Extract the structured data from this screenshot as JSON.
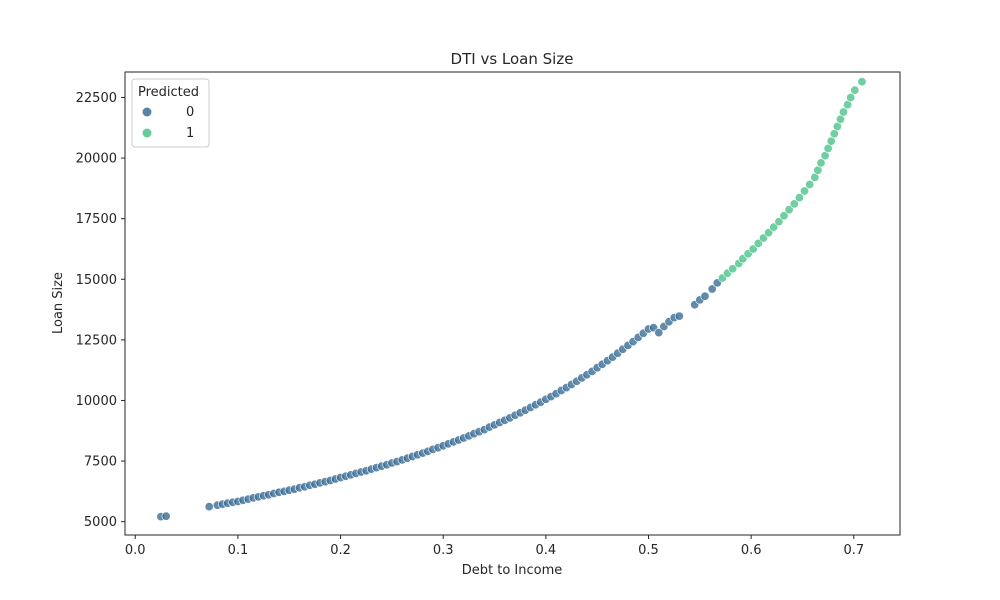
{
  "chart_data": {
    "type": "scatter",
    "title": "DTI vs Loan Size",
    "xlabel": "Debt to Income",
    "ylabel": "Loan Size",
    "xlim": [
      -0.01,
      0.745
    ],
    "ylim": [
      4450,
      23550
    ],
    "xticks": [
      0.0,
      0.1,
      0.2,
      0.3,
      0.4,
      0.5,
      0.6,
      0.7
    ],
    "xtick_labels": [
      "0.0",
      "0.1",
      "0.2",
      "0.3",
      "0.4",
      "0.5",
      "0.6",
      "0.7"
    ],
    "yticks": [
      5000,
      7500,
      10000,
      12500,
      15000,
      17500,
      20000,
      22500
    ],
    "ytick_labels": [
      "5000",
      "7500",
      "10000",
      "12500",
      "15000",
      "17500",
      "20000",
      "22500"
    ],
    "grid": false,
    "legend": {
      "title": "Predicted",
      "placement": "upper-left",
      "entries": [
        {
          "label": "0",
          "color": "#3b6e96"
        },
        {
          "label": "1",
          "color": "#4cc38a"
        }
      ]
    },
    "series": [
      {
        "name": "0",
        "color": "#3b6e96",
        "points": [
          [
            0.025,
            5210
          ],
          [
            0.03,
            5225
          ],
          [
            0.072,
            5620
          ],
          [
            0.08,
            5680
          ],
          [
            0.085,
            5720
          ],
          [
            0.09,
            5760
          ],
          [
            0.095,
            5800
          ],
          [
            0.1,
            5830
          ],
          [
            0.105,
            5880
          ],
          [
            0.11,
            5930
          ],
          [
            0.115,
            5980
          ],
          [
            0.12,
            6020
          ],
          [
            0.125,
            6070
          ],
          [
            0.13,
            6110
          ],
          [
            0.135,
            6160
          ],
          [
            0.14,
            6210
          ],
          [
            0.145,
            6250
          ],
          [
            0.15,
            6300
          ],
          [
            0.155,
            6340
          ],
          [
            0.16,
            6400
          ],
          [
            0.165,
            6440
          ],
          [
            0.17,
            6500
          ],
          [
            0.175,
            6540
          ],
          [
            0.18,
            6600
          ],
          [
            0.185,
            6650
          ],
          [
            0.19,
            6700
          ],
          [
            0.195,
            6760
          ],
          [
            0.2,
            6820
          ],
          [
            0.205,
            6870
          ],
          [
            0.21,
            6930
          ],
          [
            0.215,
            6990
          ],
          [
            0.22,
            7050
          ],
          [
            0.225,
            7100
          ],
          [
            0.23,
            7170
          ],
          [
            0.235,
            7230
          ],
          [
            0.24,
            7290
          ],
          [
            0.245,
            7350
          ],
          [
            0.25,
            7420
          ],
          [
            0.255,
            7480
          ],
          [
            0.26,
            7550
          ],
          [
            0.265,
            7620
          ],
          [
            0.27,
            7690
          ],
          [
            0.275,
            7760
          ],
          [
            0.28,
            7830
          ],
          [
            0.285,
            7900
          ],
          [
            0.29,
            7980
          ],
          [
            0.295,
            8050
          ],
          [
            0.3,
            8130
          ],
          [
            0.305,
            8210
          ],
          [
            0.31,
            8290
          ],
          [
            0.315,
            8370
          ],
          [
            0.32,
            8450
          ],
          [
            0.325,
            8540
          ],
          [
            0.33,
            8630
          ],
          [
            0.335,
            8710
          ],
          [
            0.34,
            8800
          ],
          [
            0.345,
            8900
          ],
          [
            0.35,
            8990
          ],
          [
            0.355,
            9090
          ],
          [
            0.36,
            9180
          ],
          [
            0.365,
            9280
          ],
          [
            0.37,
            9390
          ],
          [
            0.375,
            9490
          ],
          [
            0.38,
            9600
          ],
          [
            0.385,
            9710
          ],
          [
            0.39,
            9820
          ],
          [
            0.395,
            9930
          ],
          [
            0.4,
            10050
          ],
          [
            0.405,
            10160
          ],
          [
            0.41,
            10280
          ],
          [
            0.415,
            10410
          ],
          [
            0.42,
            10530
          ],
          [
            0.425,
            10660
          ],
          [
            0.43,
            10790
          ],
          [
            0.435,
            10930
          ],
          [
            0.44,
            11060
          ],
          [
            0.445,
            11200
          ],
          [
            0.45,
            11350
          ],
          [
            0.455,
            11490
          ],
          [
            0.46,
            11640
          ],
          [
            0.465,
            11790
          ],
          [
            0.47,
            11950
          ],
          [
            0.475,
            12110
          ],
          [
            0.48,
            12270
          ],
          [
            0.485,
            12430
          ],
          [
            0.49,
            12600
          ],
          [
            0.495,
            12770
          ],
          [
            0.5,
            12950
          ],
          [
            0.505,
            13000
          ],
          [
            0.51,
            12800
          ],
          [
            0.515,
            13050
          ],
          [
            0.52,
            13250
          ],
          [
            0.525,
            13420
          ],
          [
            0.53,
            13480
          ],
          [
            0.545,
            13950
          ],
          [
            0.55,
            14150
          ],
          [
            0.555,
            14300
          ],
          [
            0.562,
            14600
          ],
          [
            0.567,
            14850
          ]
        ]
      },
      {
        "name": "1",
        "color": "#4cc38a",
        "points": [
          [
            0.572,
            15050
          ],
          [
            0.577,
            15250
          ],
          [
            0.582,
            15430
          ],
          [
            0.588,
            15650
          ],
          [
            0.592,
            15850
          ],
          [
            0.597,
            16050
          ],
          [
            0.602,
            16250
          ],
          [
            0.607,
            16480
          ],
          [
            0.612,
            16700
          ],
          [
            0.617,
            16920
          ],
          [
            0.622,
            17150
          ],
          [
            0.627,
            17380
          ],
          [
            0.632,
            17620
          ],
          [
            0.637,
            17870
          ],
          [
            0.642,
            18110
          ],
          [
            0.647,
            18370
          ],
          [
            0.652,
            18640
          ],
          [
            0.657,
            18910
          ],
          [
            0.662,
            19200
          ],
          [
            0.665,
            19500
          ],
          [
            0.668,
            19800
          ],
          [
            0.672,
            20100
          ],
          [
            0.675,
            20400
          ],
          [
            0.678,
            20700
          ],
          [
            0.681,
            21000
          ],
          [
            0.684,
            21300
          ],
          [
            0.687,
            21600
          ],
          [
            0.69,
            21900
          ],
          [
            0.694,
            22200
          ],
          [
            0.697,
            22500
          ],
          [
            0.701,
            22800
          ],
          [
            0.708,
            23150
          ]
        ]
      }
    ]
  }
}
